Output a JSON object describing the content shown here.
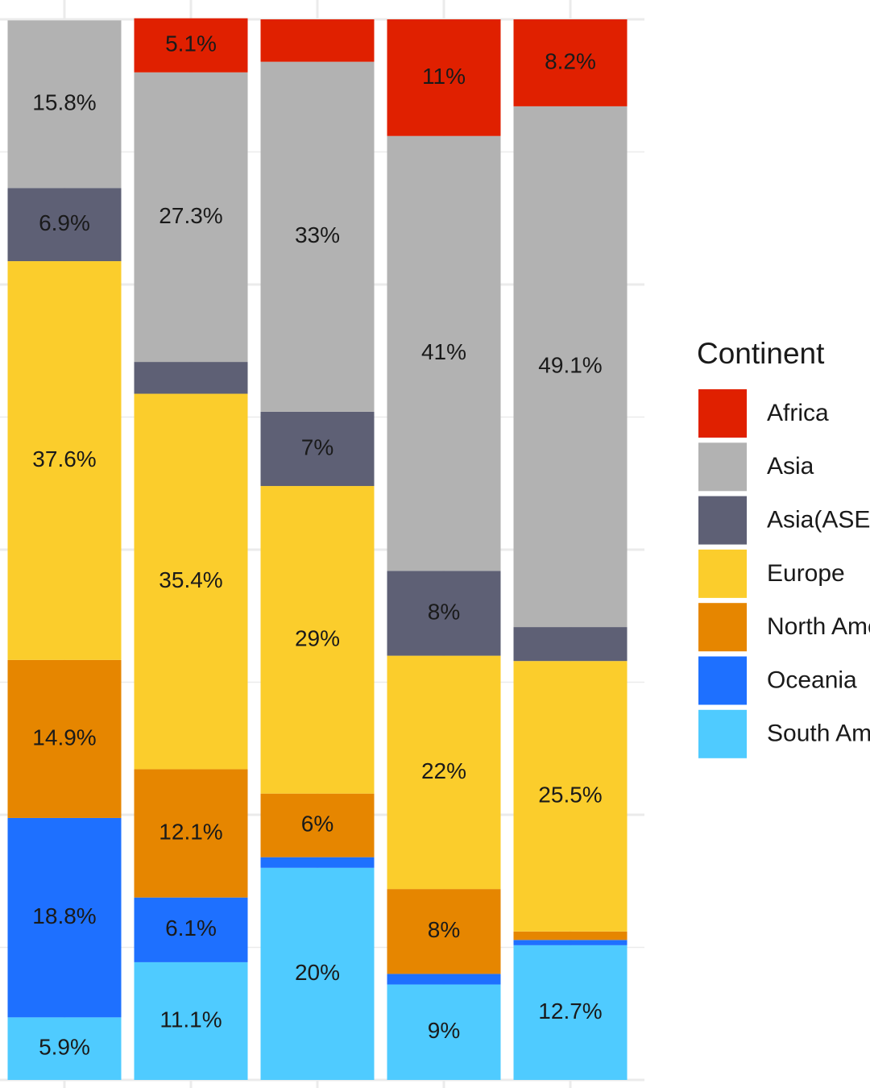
{
  "chart_data": {
    "type": "stacked_bar",
    "categories": [
      null,
      null,
      null,
      null,
      null
    ],
    "ylim": [
      0,
      100
    ],
    "yticks": [
      0,
      12.5,
      25,
      37.5,
      50,
      62.5,
      75,
      87.5,
      100
    ],
    "grid": true,
    "legend_title": "Continent",
    "legend": "right",
    "series": [
      {
        "name": "Africa",
        "color": "#e02000",
        "values": [
          0,
          5.1,
          4,
          11,
          8.2
        ],
        "value_labels": [
          null,
          "5.1%",
          null,
          "11%",
          "8.2%"
        ]
      },
      {
        "name": "Asia",
        "color": "#b2b2b2",
        "values": [
          15.8,
          27.3,
          33,
          41,
          49.1
        ],
        "value_labels": [
          "15.8%",
          "27.3%",
          "33%",
          "41%",
          "49.1%"
        ]
      },
      {
        "name": "Asia(ASEAN)",
        "color": "#5e6075",
        "values": [
          6.9,
          3,
          7,
          8,
          3.2
        ],
        "value_labels": [
          "6.9%",
          null,
          "7%",
          "8%",
          null
        ]
      },
      {
        "name": "Europe",
        "color": "#fbcd2c",
        "values": [
          37.6,
          35.4,
          29,
          22,
          25.5
        ],
        "value_labels": [
          "37.6%",
          "35.4%",
          "29%",
          "22%",
          "25.5%"
        ]
      },
      {
        "name": "North America",
        "color": "#e68600",
        "values": [
          14.9,
          12.1,
          6,
          8,
          0.8
        ],
        "value_labels": [
          "14.9%",
          "12.1%",
          "6%",
          "8%",
          null
        ]
      },
      {
        "name": "Oceania",
        "color": "#1e70ff",
        "values": [
          18.8,
          6.1,
          1,
          1,
          0.5
        ],
        "value_labels": [
          "18.8%",
          "6.1%",
          null,
          null,
          null
        ]
      },
      {
        "name": "South America",
        "color": "#4fcbff",
        "values": [
          5.9,
          11.1,
          20,
          9,
          12.7
        ],
        "value_labels": [
          "5.9%",
          "11.1%",
          "20%",
          "9%",
          "12.7%"
        ]
      }
    ]
  }
}
